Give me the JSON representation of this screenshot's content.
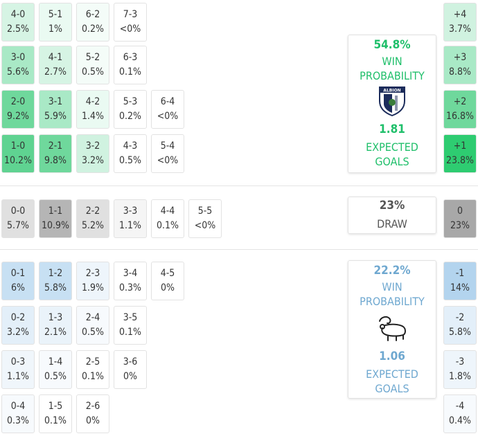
{
  "home": {
    "rows": [
      [
        {
          "score": "4-0",
          "prob": "2.5%",
          "color": "#d6f4e4"
        },
        {
          "score": "5-1",
          "prob": "1%",
          "color": "#eafaf2"
        },
        {
          "score": "6-2",
          "prob": "0.2%",
          "color": "#f4fcf8"
        },
        {
          "score": "7-3",
          "prob": "<0%",
          "color": "#ffffff"
        }
      ],
      [
        {
          "score": "3-0",
          "prob": "5.6%",
          "color": "#a9e9c6"
        },
        {
          "score": "4-1",
          "prob": "2.7%",
          "color": "#d6f4e4"
        },
        {
          "score": "5-2",
          "prob": "0.5%",
          "color": "#f4fcf8"
        },
        {
          "score": "6-3",
          "prob": "0.1%",
          "color": "#ffffff"
        }
      ],
      [
        {
          "score": "2-0",
          "prob": "9.2%",
          "color": "#6fd89c"
        },
        {
          "score": "3-1",
          "prob": "5.9%",
          "color": "#a9e9c6"
        },
        {
          "score": "4-2",
          "prob": "1.4%",
          "color": "#eafaf2"
        },
        {
          "score": "5-3",
          "prob": "0.2%",
          "color": "#ffffff"
        },
        {
          "score": "6-4",
          "prob": "<0%",
          "color": "#ffffff"
        }
      ],
      [
        {
          "score": "1-0",
          "prob": "10.2%",
          "color": "#5fd391"
        },
        {
          "score": "2-1",
          "prob": "9.8%",
          "color": "#6fd89c"
        },
        {
          "score": "3-2",
          "prob": "3.2%",
          "color": "#d0f2e0"
        },
        {
          "score": "4-3",
          "prob": "0.5%",
          "color": "#ffffff"
        },
        {
          "score": "5-4",
          "prob": "<0%",
          "color": "#ffffff"
        }
      ]
    ],
    "summary": {
      "win": "54.8%",
      "win_label": "WIN PROBABILITY",
      "crest_text": "ALBION",
      "xg": "1.81",
      "xg_label": "EXPECTED GOALS",
      "color": "#1fbf6a"
    },
    "margins": [
      {
        "label": "+4",
        "prob": "3.7%",
        "color": "#d0f2e0"
      },
      {
        "label": "+3",
        "prob": "8.8%",
        "color": "#a9e9c6"
      },
      {
        "label": "+2",
        "prob": "16.8%",
        "color": "#6fd89c"
      },
      {
        "label": "+1",
        "prob": "23.8%",
        "color": "#2ecc71"
      }
    ]
  },
  "draw": {
    "cells": [
      {
        "score": "0-0",
        "prob": "5.7%",
        "color": "#e0e0e0"
      },
      {
        "score": "1-1",
        "prob": "10.9%",
        "color": "#b5b5b5"
      },
      {
        "score": "2-2",
        "prob": "5.2%",
        "color": "#e0e0e0"
      },
      {
        "score": "3-3",
        "prob": "1.1%",
        "color": "#f5f5f5"
      },
      {
        "score": "4-4",
        "prob": "0.1%",
        "color": "#ffffff"
      },
      {
        "score": "5-5",
        "prob": "<0%",
        "color": "#ffffff"
      }
    ],
    "summary": {
      "prob": "23%",
      "label": "DRAW",
      "color": "#555555"
    },
    "margin": {
      "label": "0",
      "prob": "23%",
      "color": "#a8a8a8"
    }
  },
  "away": {
    "rows": [
      [
        {
          "score": "0-1",
          "prob": "6%",
          "color": "#c7e0f3"
        },
        {
          "score": "1-2",
          "prob": "5.8%",
          "color": "#c7e0f3"
        },
        {
          "score": "2-3",
          "prob": "1.9%",
          "color": "#eef5fb"
        },
        {
          "score": "3-4",
          "prob": "0.3%",
          "color": "#ffffff"
        },
        {
          "score": "4-5",
          "prob": "0%",
          "color": "#ffffff"
        }
      ],
      [
        {
          "score": "0-2",
          "prob": "3.2%",
          "color": "#e3eff9"
        },
        {
          "score": "1-3",
          "prob": "2.1%",
          "color": "#eaf3fa"
        },
        {
          "score": "2-4",
          "prob": "0.5%",
          "color": "#f7fafd"
        },
        {
          "score": "3-5",
          "prob": "0.1%",
          "color": "#ffffff"
        }
      ],
      [
        {
          "score": "0-3",
          "prob": "1.1%",
          "color": "#f0f6fb"
        },
        {
          "score": "1-4",
          "prob": "0.5%",
          "color": "#f7fafd"
        },
        {
          "score": "2-5",
          "prob": "0.1%",
          "color": "#ffffff"
        },
        {
          "score": "3-6",
          "prob": "0%",
          "color": "#ffffff"
        }
      ],
      [
        {
          "score": "0-4",
          "prob": "0.3%",
          "color": "#f7fafd"
        },
        {
          "score": "1-5",
          "prob": "0.1%",
          "color": "#ffffff"
        },
        {
          "score": "2-6",
          "prob": "0%",
          "color": "#ffffff"
        }
      ]
    ],
    "summary": {
      "win": "22.2%",
      "win_label": "WIN PROBABILITY",
      "xg": "1.06",
      "xg_label": "EXPECTED GOALS",
      "color": "#6fa8d0"
    },
    "margins": [
      {
        "label": "-1",
        "prob": "14%",
        "color": "#b3d4ee"
      },
      {
        "label": "-2",
        "prob": "5.8%",
        "color": "#e3eff9"
      },
      {
        "label": "-3",
        "prob": "1.8%",
        "color": "#eef5fb"
      },
      {
        "label": "-4",
        "prob": "0.4%",
        "color": "#f7fafd"
      }
    ]
  }
}
